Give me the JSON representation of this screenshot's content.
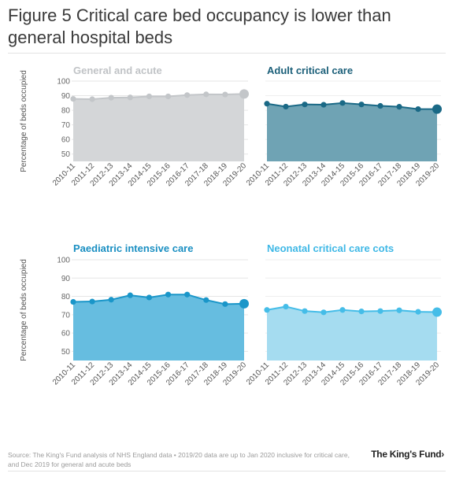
{
  "figure": {
    "title": "Figure 5 Critical care bed occupancy is lower than general hospital beds",
    "source": "Source: The King's Fund analysis of NHS England data • 2019/20 data are up to Jan 2020 inclusive for critical care, and Dec 2019 for general and acute beds",
    "brand": "The King's Fund",
    "brand_mark": "›"
  },
  "chart_data": [
    {
      "type": "area",
      "title": "General and acute",
      "ylabel": "Percentage of beds occupied",
      "ylim": [
        45,
        100
      ],
      "yticks": [
        50,
        60,
        70,
        80,
        90,
        100
      ],
      "categories": [
        "2010-11",
        "2011-12",
        "2012-13",
        "2013-14",
        "2014-15",
        "2015-16",
        "2016-17",
        "2017-18",
        "2018-19",
        "2019-20"
      ],
      "values": [
        87.8,
        87.6,
        88.6,
        88.8,
        89.5,
        89.5,
        90.4,
        90.9,
        90.8,
        91.2
      ],
      "color": "#d4d6d8",
      "line_color": "#c3c6c9",
      "title_color": "#c0c3c6"
    },
    {
      "type": "area",
      "title": "Adult critical care",
      "ylabel": "",
      "ylim": [
        45,
        100
      ],
      "yticks": [],
      "categories": [
        "2010-11",
        "2011-12",
        "2012-13",
        "2013-14",
        "2014-15",
        "2015-16",
        "2016-17",
        "2017-18",
        "2018-19",
        "2019-20"
      ],
      "values": [
        84.5,
        82.5,
        84.0,
        83.8,
        85.0,
        84.0,
        83.0,
        82.4,
        80.8,
        80.8
      ],
      "color": "#6fa3b4",
      "line_color": "#1a6986",
      "title_color": "#1b5f79"
    },
    {
      "type": "area",
      "title": "Paediatric intensive care",
      "ylabel": "Percentage of beds occupied",
      "ylim": [
        45,
        100
      ],
      "yticks": [
        50,
        60,
        70,
        80,
        90,
        100
      ],
      "categories": [
        "2010-11",
        "2011-12",
        "2012-13",
        "2013-14",
        "2014-15",
        "2015-16",
        "2016-17",
        "2017-18",
        "2018-19",
        "2019-20"
      ],
      "values": [
        77.0,
        77.2,
        78.2,
        80.6,
        79.4,
        81.0,
        81.0,
        78.0,
        75.8,
        76.0
      ],
      "color": "#66bde0",
      "line_color": "#1a96c9",
      "title_color": "#1a8fc2"
    },
    {
      "type": "area",
      "title": "Neonatal critical care cots",
      "ylabel": "",
      "ylim": [
        45,
        100
      ],
      "yticks": [],
      "categories": [
        "2010-11",
        "2011-12",
        "2012-13",
        "2013-14",
        "2014-15",
        "2015-16",
        "2016-17",
        "2017-18",
        "2018-19",
        "2019-20"
      ],
      "values": [
        72.6,
        74.4,
        72.0,
        71.3,
        72.6,
        71.8,
        72.0,
        72.4,
        71.6,
        71.4
      ],
      "color": "#a5dcf0",
      "line_color": "#45bde8",
      "title_color": "#3fb8e6"
    }
  ]
}
